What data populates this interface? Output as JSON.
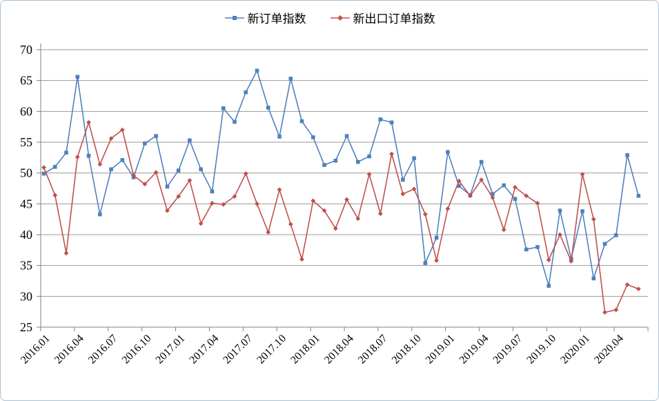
{
  "style": {
    "accent_blue": "#4f81bd",
    "accent_red": "#c0504d",
    "grid_color": "#999999",
    "axis_color": "#7f7f7f",
    "border_color": "#a9c0d4",
    "text_color": "#000000"
  },
  "chart_data": {
    "type": "line",
    "title": "",
    "xlabel": "",
    "ylabel": "",
    "ylim": [
      25,
      70
    ],
    "y_ticks": [
      25,
      30,
      35,
      40,
      45,
      50,
      55,
      60,
      65,
      70
    ],
    "grid": true,
    "legend_position": "top",
    "x_tick_every": 3,
    "x": [
      "2016.01",
      "2016.02",
      "2016.03",
      "2016.04",
      "2016.05",
      "2016.06",
      "2016.07",
      "2016.08",
      "2016.09",
      "2016.10",
      "2016.11",
      "2016.12",
      "2017.01",
      "2017.02",
      "2017.03",
      "2017.04",
      "2017.05",
      "2017.06",
      "2017.07",
      "2017.08",
      "2017.09",
      "2017.10",
      "2017.11",
      "2017.12",
      "2018.01",
      "2018.02",
      "2018.03",
      "2018.04",
      "2018.05",
      "2018.06",
      "2018.07",
      "2018.08",
      "2018.09",
      "2018.10",
      "2018.11",
      "2018.12",
      "2019.01",
      "2019.02",
      "2019.03",
      "2019.04",
      "2019.05",
      "2019.06",
      "2019.07",
      "2019.08",
      "2019.09",
      "2019.10",
      "2019.11",
      "2019.12",
      "2020.01",
      "2020.02",
      "2020.03",
      "2020.04",
      "2020.05",
      "2020.06"
    ],
    "series": [
      {
        "name": "新订单指数",
        "color": "#4f81bd",
        "marker": "square",
        "values": [
          49.9,
          51.0,
          53.3,
          65.6,
          52.8,
          43.3,
          50.6,
          52.1,
          49.3,
          54.8,
          56.0,
          47.8,
          50.4,
          55.3,
          50.6,
          47.0,
          60.5,
          58.3,
          63.1,
          66.6,
          60.6,
          55.9,
          65.3,
          58.4,
          55.8,
          51.3,
          52.0,
          56.0,
          51.8,
          52.7,
          58.7,
          58.2,
          48.9,
          52.4,
          35.4,
          39.5,
          53.4,
          47.9,
          46.4,
          51.8,
          46.6,
          48.0,
          45.8,
          37.6,
          38.0,
          31.7,
          43.9,
          36.1,
          43.8,
          32.9,
          38.5,
          39.9,
          52.9,
          46.3
        ]
      },
      {
        "name": "新出口订单指数",
        "color": "#c0504d",
        "marker": "diamond",
        "values": [
          50.9,
          46.4,
          37.0,
          52.6,
          58.2,
          51.4,
          55.6,
          57.0,
          49.6,
          48.2,
          50.1,
          43.9,
          46.2,
          48.8,
          41.8,
          45.1,
          44.9,
          46.2,
          49.9,
          45.0,
          40.4,
          47.3,
          41.7,
          36.0,
          45.5,
          43.9,
          41.0,
          45.7,
          42.6,
          49.8,
          43.4,
          53.1,
          46.6,
          47.4,
          43.3,
          35.8,
          44.2,
          48.7,
          46.3,
          48.9,
          46.0,
          40.8,
          47.7,
          46.3,
          45.1,
          35.9,
          40.0,
          35.7,
          49.8,
          42.5,
          27.4,
          27.8,
          31.9,
          31.2
        ]
      }
    ]
  }
}
